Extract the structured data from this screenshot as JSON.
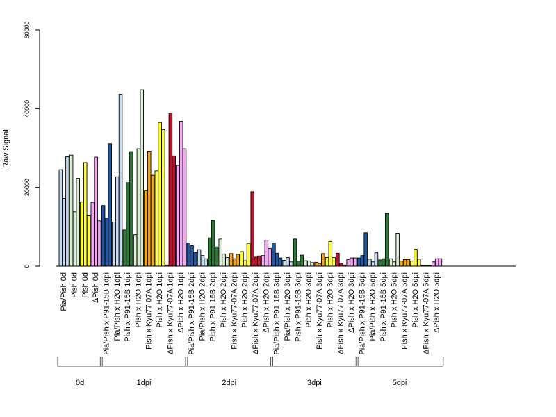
{
  "chart_data": {
    "type": "bar",
    "ylabel": "Raw Signal",
    "ylim": [
      0,
      60000
    ],
    "yticks": [
      0,
      20000,
      40000,
      60000
    ],
    "legend": "none",
    "palette": {
      "lightblue": "#c6dbef",
      "darkblue": "#2158a6",
      "lightgreen": "#d9f0d3",
      "darkgreen": "#2b7a36",
      "yellow": "#ffff33",
      "orange": "#f5a31a",
      "red": "#c8102e",
      "pink": "#f4a7f4"
    },
    "groups": [
      {
        "label": "0d",
        "categories": [
          {
            "label": "Pia/Pish 0d",
            "color": "lightblue",
            "values": [
              24500,
              17200,
              27800
            ]
          },
          {
            "label": "Pish 0d",
            "color": "lightgreen",
            "values": [
              28200,
              13800,
              22300
            ]
          },
          {
            "label": "Pish 0d",
            "color": "yellow",
            "values": [
              16300,
              26300,
              12800
            ]
          },
          {
            "label": "ΔPish 0d",
            "color": "pink",
            "values": [
              16200,
              27700,
              11500
            ]
          }
        ]
      },
      {
        "label": "1dpi",
        "categories": [
          {
            "label": "Pia/Pish x P91-15B 1dpi",
            "color": "darkblue",
            "values": [
              15400,
              12200,
              31100
            ]
          },
          {
            "label": "Pia/Pish x H2O 1dpi",
            "color": "lightblue",
            "values": [
              11200,
              22700,
              43700
            ]
          },
          {
            "label": "Pish x P91-15B 1dpi",
            "color": "darkgreen",
            "values": [
              9200,
              21200,
              29100
            ]
          },
          {
            "label": "Pish x H2O 1dpi",
            "color": "lightgreen",
            "values": [
              8000,
              29800,
              44800
            ]
          },
          {
            "label": "Pish x Kyu77-07A 1dpi",
            "color": "orange",
            "values": [
              19200,
              29200,
              23100
            ]
          },
          {
            "label": "Pish x H2O 1dpi",
            "color": "yellow",
            "values": [
              24200,
              36500,
              34700
            ]
          },
          {
            "label": "ΔPish x Kyu77-07A 1dpi",
            "color": "red",
            "values": [
              300,
              38900,
              28000
            ]
          },
          {
            "label": "ΔPish x H2O 1dpi",
            "color": "pink",
            "values": [
              25600,
              36800,
              29800
            ]
          }
        ]
      },
      {
        "label": "2dpi",
        "categories": [
          {
            "label": "Pia/Pish x P91-15B 2dpi",
            "color": "darkblue",
            "values": [
              5900,
              5200,
              3500
            ]
          },
          {
            "label": "Pia/Pish x H2O 2dpi",
            "color": "lightblue",
            "values": [
              4200,
              2700,
              1900
            ]
          },
          {
            "label": "Pish x P91-15B 2dpi",
            "color": "darkgreen",
            "values": [
              7200,
              11600,
              4900
            ]
          },
          {
            "label": "Pish x H2O 2dpi",
            "color": "lightgreen",
            "values": [
              6900,
              3100,
              2200
            ]
          },
          {
            "label": "Pish x Kyu77-07A 2dpi",
            "color": "orange",
            "values": [
              3200,
              1900,
              3000
            ]
          },
          {
            "label": "Pish x H2O 2dpi",
            "color": "yellow",
            "values": [
              3700,
              1400,
              5800
            ]
          },
          {
            "label": "ΔPish x Kyu77-07A 2dpi",
            "color": "red",
            "values": [
              18900,
              2300,
              2600
            ]
          },
          {
            "label": "ΔPish x H2O 2dpi",
            "color": "pink",
            "values": [
              2700,
              6600,
              4500
            ]
          }
        ]
      },
      {
        "label": "3dpi",
        "categories": [
          {
            "label": "Pia/Pish x P91-15B 3dpi",
            "color": "darkblue",
            "values": [
              5900,
              3300,
              2100
            ]
          },
          {
            "label": "Pia/Pish x H2O 3dpi",
            "color": "lightblue",
            "values": [
              1500,
              2200,
              1100
            ]
          },
          {
            "label": "Pish x P91-15B 3dpi",
            "color": "darkgreen",
            "values": [
              6900,
              1300,
              2800
            ]
          },
          {
            "label": "Pish x H2O 3dpi",
            "color": "lightgreen",
            "values": [
              1400,
              1300,
              900
            ]
          },
          {
            "label": "Pish x Kyu77-07A 3dpi",
            "color": "orange",
            "values": [
              1000,
              700,
              3200
            ]
          },
          {
            "label": "Pish x H2O 3dpi",
            "color": "yellow",
            "values": [
              2200,
              6300,
              2200
            ]
          },
          {
            "label": "ΔPish x Kyu77-07A 3dpi",
            "color": "red",
            "values": [
              3300,
              700,
              300
            ]
          },
          {
            "label": "ΔPish x H2O 3dpi",
            "color": "pink",
            "values": [
              1700,
              2100,
              2100
            ]
          }
        ]
      },
      {
        "label": "5dpi",
        "categories": [
          {
            "label": "Pia/Pish x P91-15B 5dpi",
            "color": "darkblue",
            "values": [
              2100,
              2700,
              8500
            ]
          },
          {
            "label": "Pia/Pish x H2O 5dpi",
            "color": "lightblue",
            "values": [
              1800,
              1100,
              3400
            ]
          },
          {
            "label": "Pish x P91-15B 5dpi",
            "color": "darkgreen",
            "values": [
              1600,
              1900,
              13400
            ]
          },
          {
            "label": "Pish x H2O 5dpi",
            "color": "lightgreen",
            "values": [
              1900,
              1100,
              8400
            ]
          },
          {
            "label": "Pish x Kyu77-07A 5dpi",
            "color": "orange",
            "values": [
              1300,
              1700,
              1700
            ]
          },
          {
            "label": "Pish x H2O 5dpi",
            "color": "yellow",
            "values": [
              1300,
              4300,
              1800
            ]
          },
          {
            "label": "ΔPish x Kyu77-07A 5dpi",
            "color": "red",
            "values": [
              200,
              200,
              200
            ]
          },
          {
            "label": "ΔPish x H2O 5dpi",
            "color": "pink",
            "values": [
              1100,
              1900,
              1900
            ]
          }
        ]
      }
    ]
  }
}
